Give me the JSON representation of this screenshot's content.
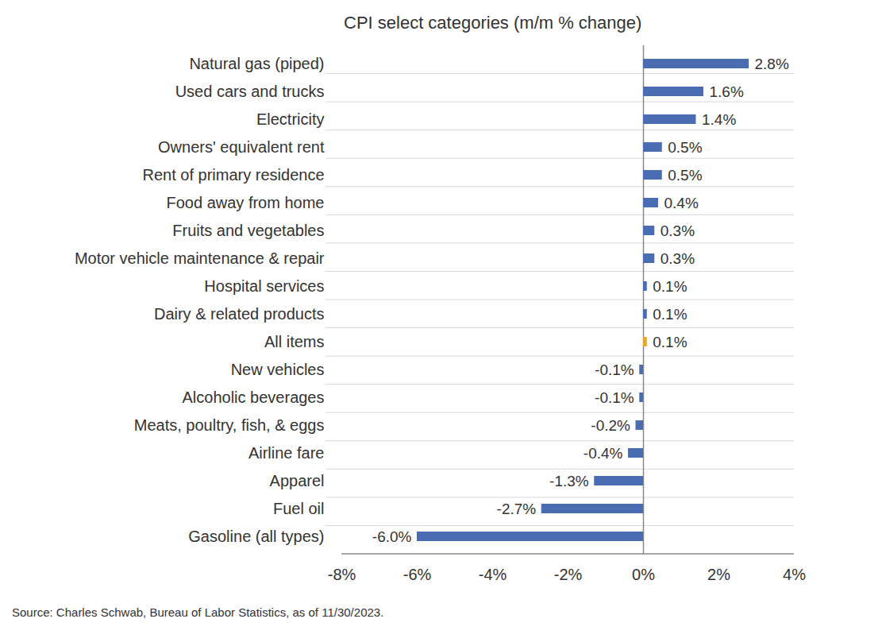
{
  "chart_data": {
    "type": "bar",
    "orientation": "horizontal",
    "title": "CPI select categories (m/m % change)",
    "caption": "Source: Charles Schwab, Bureau of Labor Statistics, as of 11/30/2023.",
    "categories": [
      "Natural gas (piped)",
      "Used cars and trucks",
      "Electricity",
      "Owners' equivalent rent",
      "Rent of primary residence",
      "Food away from home",
      "Fruits and vegetables",
      "Motor vehicle maintenance & repair",
      "Hospital services",
      "Dairy & related products",
      "All items",
      "New vehicles",
      "Alcoholic beverages",
      "Meats, poultry, fish, & eggs",
      "Airline fare",
      "Apparel",
      "Fuel oil",
      "Gasoline (all types)"
    ],
    "values": [
      2.8,
      1.6,
      1.4,
      0.5,
      0.5,
      0.4,
      0.3,
      0.3,
      0.1,
      0.1,
      0.1,
      -0.1,
      -0.1,
      -0.2,
      -0.4,
      -1.3,
      -2.7,
      -6.0
    ],
    "value_labels": [
      "2.8%",
      "1.6%",
      "1.4%",
      "0.5%",
      "0.5%",
      "0.4%",
      "0.3%",
      "0.3%",
      "0.1%",
      "0.1%",
      "0.1%",
      "-0.1%",
      "-0.1%",
      "-0.2%",
      "-0.4%",
      "-1.3%",
      "-2.7%",
      "-6.0%"
    ],
    "colors": [
      "#4a6cb3",
      "#4a6cb3",
      "#4a6cb3",
      "#4a6cb3",
      "#4a6cb3",
      "#4a6cb3",
      "#4a6cb3",
      "#4a6cb3",
      "#4a6cb3",
      "#4a6cb3",
      "#e8a72c",
      "#4a6cb3",
      "#4a6cb3",
      "#4a6cb3",
      "#4a6cb3",
      "#4a6cb3",
      "#4a6cb3",
      "#4a6cb3"
    ],
    "data_labels": true,
    "xlim": [
      -8,
      4
    ],
    "xticks": [
      {
        "value": -8,
        "label": "-8%"
      },
      {
        "value": -6,
        "label": "-6%"
      },
      {
        "value": -4,
        "label": "-4%"
      },
      {
        "value": -2,
        "label": "-2%"
      },
      {
        "value": 0,
        "label": "0%"
      },
      {
        "value": 2,
        "label": "2%"
      },
      {
        "value": 4,
        "label": "4%"
      }
    ]
  }
}
